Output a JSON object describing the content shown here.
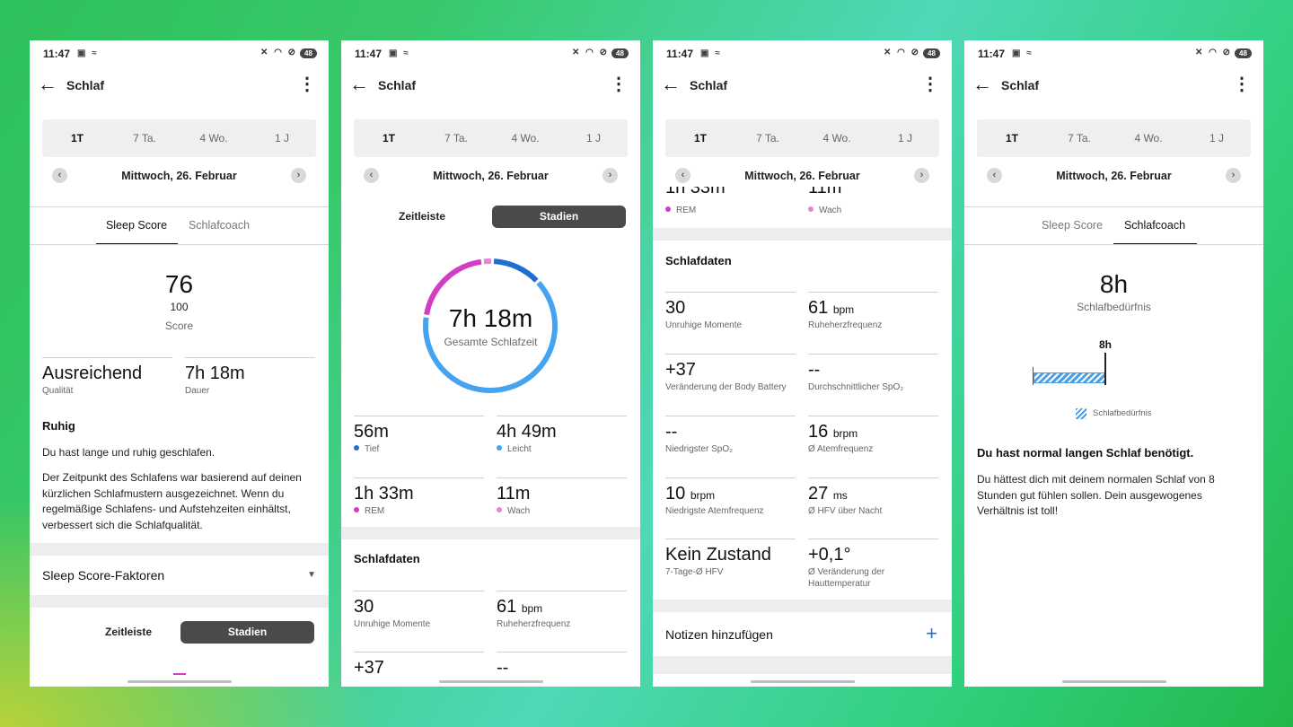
{
  "status": {
    "time": "11:47",
    "battery": "48"
  },
  "appbar": {
    "title": "Schlaf"
  },
  "period": [
    "1T",
    "7 Ta.",
    "4 Wo.",
    "1 J"
  ],
  "date": "Mittwoch, 26. Februar",
  "tabs": {
    "sleep_score": "Sleep Score",
    "coach": "Schlafcoach"
  },
  "segment": {
    "timeline": "Zeitleiste",
    "stages": "Stadien"
  },
  "score": {
    "value": "76",
    "max": "100",
    "label": "Score"
  },
  "quality": {
    "value": "Ausreichend",
    "label": "Qualität"
  },
  "duration": {
    "value": "7h 18m",
    "label": "Dauer"
  },
  "insight": {
    "heading": "Ruhig",
    "line1": "Du hast lange und ruhig geschlafen.",
    "line2": "Der Zeitpunkt des Schlafens war basierend auf deinen kürzlichen Schlafmustern ausgezeichnet. Wenn du regelmäßige Schlafens- und Aufstehzeiten einhältst, verbessert sich die Schlafqualität."
  },
  "factors": {
    "label": "Sleep Score-Faktoren"
  },
  "ring": {
    "total": "7h 18m",
    "label": "Gesamte Schlafzeit"
  },
  "stages": [
    {
      "value": "56m",
      "label": "Tief",
      "color": "#1f6fd1",
      "minutes": 56
    },
    {
      "value": "4h 49m",
      "label": "Leicht",
      "color": "#45a3ef",
      "minutes": 289
    },
    {
      "value": "1h 33m",
      "label": "REM",
      "color": "#d23dc4",
      "minutes": 93
    },
    {
      "value": "11m",
      "label": "Wach",
      "color": "#e384dd",
      "minutes": 11
    }
  ],
  "stages_partial": {
    "rem": "1h 33m",
    "wach": "11m"
  },
  "sleepdata": {
    "heading": "Schlafdaten",
    "restless": {
      "value": "30",
      "label": "Unruhige Momente"
    },
    "rhr": {
      "value": "61",
      "unit": "bpm",
      "label": "Ruheherzfrequenz"
    },
    "battery": {
      "value": "+37",
      "label": "Veränderung der Body Battery"
    },
    "spo2_avg": {
      "value": "--",
      "label": "Durchschnittlicher SpO₂"
    },
    "spo2_min": {
      "value": "--",
      "label": "Niedrigster SpO₂"
    },
    "resp_avg": {
      "value": "16",
      "unit": "brpm",
      "label": "Ø Atemfrequenz"
    },
    "resp_min": {
      "value": "10",
      "unit": "brpm",
      "label": "Niedrigste Atemfrequenz"
    },
    "hrv_night": {
      "value": "27",
      "unit": "ms",
      "label": "Ø HFV über Nacht"
    },
    "hrv_state": {
      "value": "Kein Zustand",
      "label": "7-Tage-Ø HFV"
    },
    "skin_temp": {
      "value": "+0,1°",
      "label": "Ø Veränderung der Hauttemperatur"
    }
  },
  "notes": {
    "label": "Notizen hinzufügen",
    "plus": "+"
  },
  "coach": {
    "need": "8h",
    "need_label": "Schlafbedürfnis",
    "chart_marker": "8h",
    "legend": "Schlafbedürfnis",
    "heading": "Du hast normal langen Schlaf benötigt.",
    "text": "Du hättest dich mit deinem normalen Schlaf von 8 Stunden gut fühlen sollen. Dein ausgewogenes Verhältnis ist toll!"
  },
  "colors": {
    "accent": "#1f6fd1",
    "pink": "#d23dc4",
    "dark_seg": "#4a4a4c"
  }
}
